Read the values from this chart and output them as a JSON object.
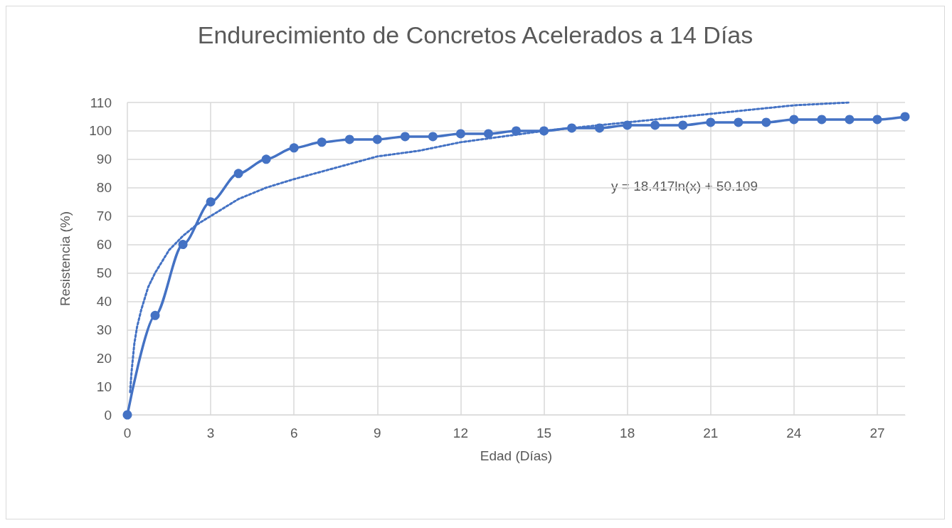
{
  "chart_data": {
    "type": "line",
    "title": "Endurecimiento de Concretos Acelerados a 14 Días",
    "xlabel": "Edad (Días)",
    "ylabel": "Resistencia (%)",
    "x": [
      0,
      1,
      2,
      3,
      4,
      5,
      6,
      7,
      8,
      9,
      10,
      11,
      12,
      13,
      14,
      15,
      16,
      17,
      18,
      19,
      20,
      21,
      22,
      23,
      24,
      25,
      26,
      27,
      28
    ],
    "series": [
      {
        "color": "#4472c4",
        "marker": "circle",
        "line_style": "solid",
        "values": [
          0,
          35,
          60,
          75,
          85,
          90,
          94,
          96,
          97,
          97,
          98,
          98,
          99,
          99,
          100,
          100,
          101,
          101,
          102,
          102,
          102,
          103,
          103,
          103,
          104,
          104,
          104,
          104,
          105
        ]
      },
      {
        "color": "#4472c4",
        "marker": "none",
        "line_style": "dotted",
        "x": [
          0.1,
          0.15,
          0.25,
          0.35,
          0.5,
          0.75,
          1,
          1.5,
          2,
          2.5,
          3,
          4,
          5,
          6,
          7.5,
          9,
          10.5,
          12,
          13.5,
          15,
          18,
          21,
          24,
          26
        ],
        "values": [
          8,
          15,
          25,
          31,
          37,
          45,
          50,
          58,
          63,
          67,
          70,
          76,
          80,
          83,
          87,
          91,
          93,
          96,
          98,
          100,
          103,
          106,
          109,
          110
        ]
      }
    ],
    "annotations": [
      "y = 18.417ln(x) + 50.109"
    ],
    "xlim": [
      0,
      28
    ],
    "xticks": [
      0,
      3,
      6,
      9,
      12,
      15,
      18,
      21,
      24,
      27
    ],
    "ylim": [
      0,
      110
    ],
    "yticks": [
      0,
      10,
      20,
      30,
      40,
      50,
      60,
      70,
      80,
      90,
      100,
      110
    ],
    "grid": true
  }
}
